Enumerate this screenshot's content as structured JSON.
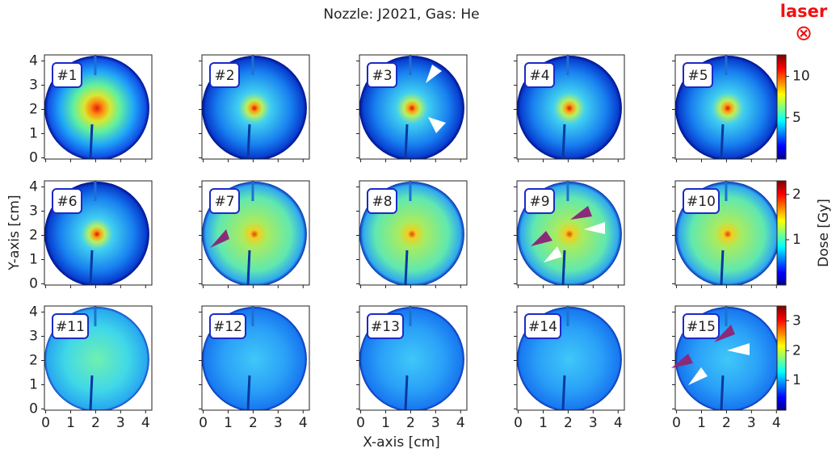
{
  "chart_data": {
    "type": "image-grid",
    "title": "Nozzle: J2021, Gas: He",
    "annotation": "laser",
    "annotation_symbol": "⊗",
    "xlabel": "X-axis [cm]",
    "ylabel": "Y-axis [cm]",
    "xlim": [
      -0.05,
      4.25
    ],
    "ylim": [
      -0.05,
      4.25
    ],
    "xticks": [
      0,
      1,
      2,
      3,
      4
    ],
    "yticks": [
      0,
      1,
      2,
      3,
      4
    ],
    "panels": [
      "#1",
      "#2",
      "#3",
      "#4",
      "#5",
      "#6",
      "#7",
      "#8",
      "#9",
      "#10",
      "#11",
      "#12",
      "#13",
      "#14",
      "#15"
    ],
    "colorbars": [
      {
        "clim": [
          0,
          12.6
        ],
        "ticks": [
          5,
          10
        ]
      },
      {
        "label": "Dose [Gy]",
        "clim": [
          0,
          2.3
        ],
        "ticks": [
          1,
          2
        ]
      },
      {
        "clim": [
          0,
          3.5
        ],
        "ticks": [
          1,
          2,
          3
        ]
      }
    ]
  }
}
